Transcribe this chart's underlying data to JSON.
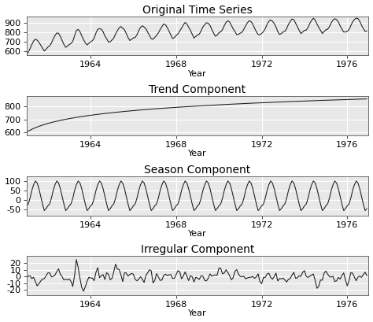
{
  "t_start": 1961.0,
  "t_end": 1977.0,
  "n_months": 192,
  "xticks": [
    1964,
    1968,
    1972,
    1976
  ],
  "xlim": [
    1961.0,
    1977.0
  ],
  "panel1": {
    "title": "Original Time Series",
    "ylabel_ticks": [
      600,
      700,
      800,
      900
    ],
    "ylim": [
      555,
      970
    ],
    "xlabel": "Year"
  },
  "panel2": {
    "title": "Trend Component",
    "ylabel_ticks": [
      600,
      700,
      800
    ],
    "ylim": [
      575,
      880
    ],
    "xlabel": "Year"
  },
  "panel3": {
    "title": "Season Component",
    "ylabel_ticks": [
      -50,
      0,
      50,
      100
    ],
    "ylim": [
      -80,
      125
    ],
    "xlabel": "Year"
  },
  "panel4": {
    "title": "Irregular Component",
    "ylabel_ticks": [
      -20,
      -10,
      0,
      10,
      20
    ],
    "ylim": [
      -28,
      30
    ],
    "xlabel": "Year"
  },
  "line_color": "#1a1a1a",
  "line_width": 0.75,
  "bg_color": "#e8e8e8",
  "grid_color": "#ffffff",
  "title_fontsize": 10,
  "label_fontsize": 8,
  "tick_fontsize": 8
}
